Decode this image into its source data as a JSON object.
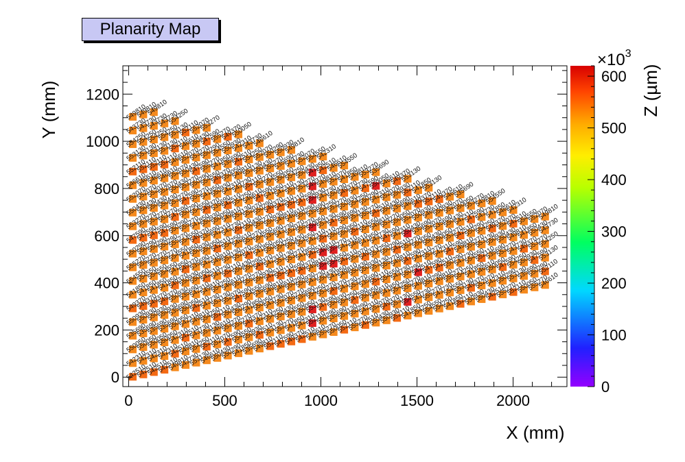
{
  "chart_data": {
    "type": "scatter",
    "title": "Planarity Map",
    "xlabel": "X (mm)",
    "ylabel": "Y (mm)",
    "zlabel": "Z (µm)",
    "z_exponent_label": "×10",
    "z_exponent_power": "3",
    "xlim": [
      -30,
      2280
    ],
    "ylim": [
      -40,
      1320
    ],
    "zlim": [
      0,
      620
    ],
    "x_ticks": [
      "0",
      "500",
      "1000",
      "1500",
      "2000"
    ],
    "y_ticks": [
      "0",
      "200",
      "400",
      "600",
      "800",
      "1000",
      "1200"
    ],
    "z_ticks": [
      "0",
      "100",
      "200",
      "300",
      "400",
      "500",
      "600"
    ],
    "grid": false,
    "marker": "square",
    "colormap": "rainbow",
    "region": {
      "x_start": 20,
      "x_end": 2170,
      "x_step": 55,
      "y_step": 58,
      "y_min_at_x0": 0,
      "y_min_at_x2170": 390,
      "y_max_at_x0": 1150,
      "y_max_at_x2170": 690
    },
    "point_labels": [
      "542510",
      "542310",
      "550050",
      "535690",
      "550930",
      "549370",
      "541850",
      "554550",
      "555270",
      "550290",
      "547590",
      "553270",
      "550430",
      "552070",
      "546610",
      "552110",
      "553130",
      "554250",
      "543730",
      "549810"
    ],
    "hot_points": [
      {
        "x": 950,
        "y": 860,
        "z": 610
      },
      {
        "x": 950,
        "y": 780,
        "z": 600
      },
      {
        "x": 950,
        "y": 620,
        "z": 605
      },
      {
        "x": 1030,
        "y": 500,
        "z": 600
      },
      {
        "x": 950,
        "y": 300,
        "z": 610
      },
      {
        "x": 950,
        "y": 230,
        "z": 600
      },
      {
        "x": 1270,
        "y": 810,
        "z": 600
      },
      {
        "x": 1450,
        "y": 620,
        "z": 605
      },
      {
        "x": 1450,
        "y": 310,
        "z": 600
      },
      {
        "x": 1520,
        "y": 440,
        "z": 598
      }
    ]
  }
}
